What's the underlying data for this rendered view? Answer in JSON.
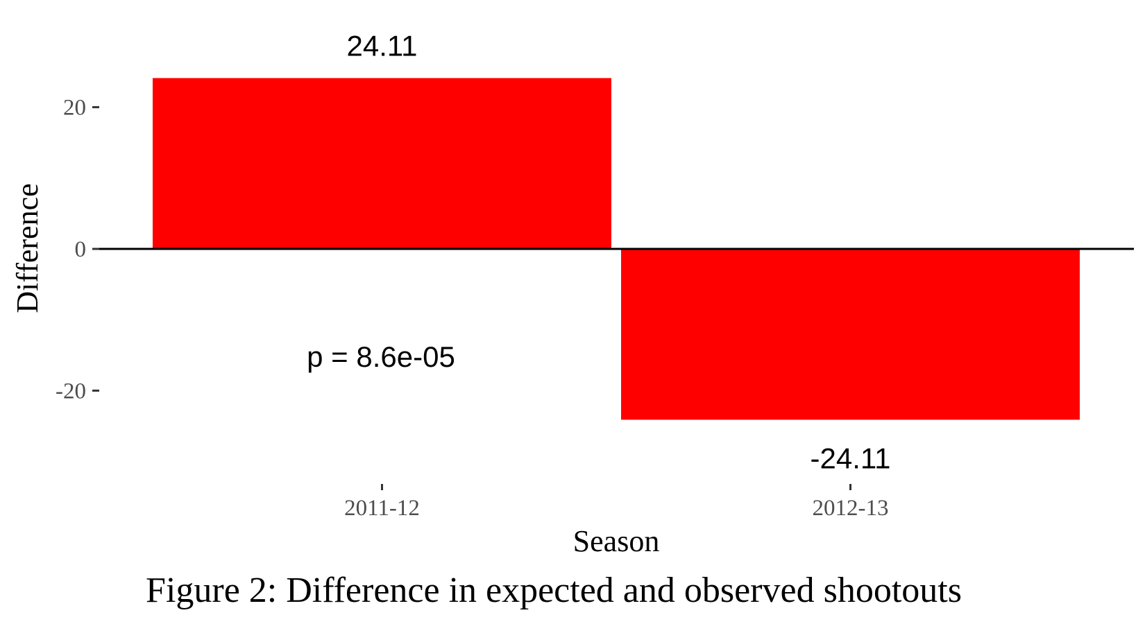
{
  "chart_data": {
    "type": "bar",
    "categories": [
      "2011-12",
      "2012-13"
    ],
    "values": [
      24.11,
      -24.11
    ],
    "data_labels": [
      "24.11",
      "-24.11"
    ],
    "xlabel": "Season",
    "ylabel": "Difference",
    "ylim": [
      -30,
      30
    ],
    "yticks": [
      -20,
      0,
      20
    ],
    "ytick_labels": [
      "-20",
      "0",
      "20"
    ],
    "annotation": "p = 8.6e-05",
    "caption": "Figure 2: Difference in expected and observed shootouts",
    "grid": false,
    "legend": "none",
    "bar_color": "#ff0000",
    "zero_line_color": "#000000"
  }
}
